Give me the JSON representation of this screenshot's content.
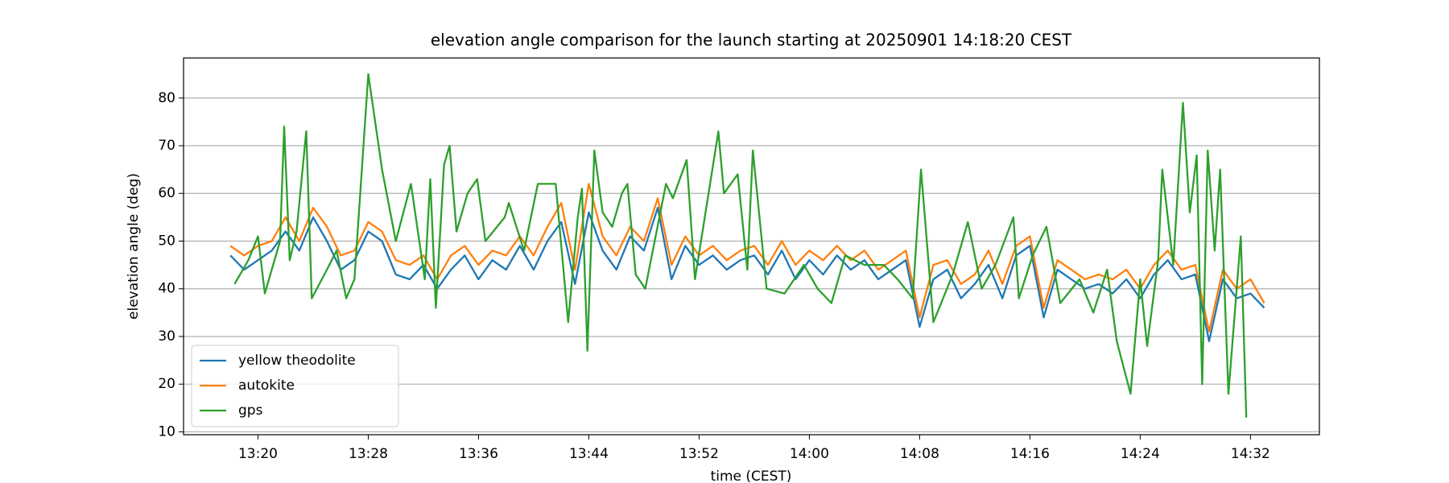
{
  "chart_data": {
    "type": "line",
    "title": "elevation angle comparison for the launch starting at 20250901 14:18:20 CEST",
    "x_label": "time (CEST)",
    "y_label": "elevation angle (deg)",
    "x": [
      798,
      799,
      800,
      801,
      802,
      803,
      804,
      805,
      806,
      807,
      808,
      809,
      810,
      811,
      812,
      813,
      814,
      815,
      816,
      817,
      818,
      819,
      820,
      821,
      822,
      823,
      824,
      825,
      826,
      827,
      828,
      829,
      830,
      831,
      832,
      833,
      834,
      835,
      836,
      837,
      838,
      839,
      840,
      841,
      842,
      843,
      844,
      845,
      846,
      847,
      848,
      849,
      850,
      851,
      852,
      853,
      854,
      855,
      856,
      857,
      858,
      859,
      860,
      861,
      862,
      863,
      864,
      865,
      866,
      867,
      868,
      869,
      870,
      871,
      872,
      873
    ],
    "series": [
      {
        "name": "yellow theodolite",
        "color": "#1f77b4",
        "values": [
          47,
          44,
          46,
          48,
          52,
          48,
          55,
          50,
          44,
          46,
          52,
          50,
          43,
          42,
          45,
          40,
          44,
          47,
          42,
          46,
          44,
          49,
          44,
          50,
          54,
          41,
          56,
          48,
          44,
          51,
          48,
          57,
          42,
          49,
          45,
          47,
          44,
          46,
          47,
          43,
          48,
          42,
          46,
          43,
          47,
          44,
          46,
          42,
          44,
          46,
          32,
          42,
          44,
          38,
          41,
          45,
          38,
          47,
          49,
          34,
          44,
          42,
          40,
          41,
          39,
          42,
          38,
          43,
          46,
          42,
          43,
          29,
          42,
          38,
          39,
          36
        ]
      },
      {
        "name": "autokite",
        "color": "#ff7f0e",
        "values": [
          49,
          47,
          49,
          50,
          55,
          50,
          57,
          53,
          47,
          48,
          54,
          52,
          46,
          45,
          47,
          42,
          47,
          49,
          45,
          48,
          47,
          51,
          47,
          53,
          58,
          44,
          62,
          51,
          47,
          53,
          50,
          59,
          45,
          51,
          47,
          49,
          46,
          48,
          49,
          45,
          50,
          45,
          48,
          46,
          49,
          46,
          48,
          44,
          46,
          48,
          34,
          45,
          46,
          41,
          43,
          48,
          41,
          49,
          51,
          36,
          46,
          44,
          42,
          43,
          42,
          44,
          40,
          45,
          48,
          44,
          45,
          31,
          44,
          40,
          42,
          37
        ]
      },
      {
        "name": "gps",
        "color": "#2ca02c",
        "x": [
          798.3,
          799.3,
          800,
          800.5,
          801.6,
          801.9,
          802.3,
          802.8,
          803.5,
          803.9,
          805,
          805.7,
          806.4,
          807,
          808,
          809,
          810,
          811.1,
          812.1,
          812.5,
          812.9,
          813.5,
          813.9,
          814.4,
          815.2,
          815.9,
          816.5,
          817.9,
          818.2,
          819.3,
          820.3,
          821.6,
          822.5,
          823.2,
          823.5,
          823.9,
          824.4,
          825,
          825.7,
          826.4,
          826.8,
          827.4,
          828.1,
          829.6,
          830.1,
          831.1,
          831.7,
          833.4,
          833.8,
          834.8,
          835.5,
          835.9,
          836.9,
          838.2,
          839.6,
          840.6,
          841.6,
          842.6,
          844,
          845.4,
          846.4,
          847.5,
          848.1,
          849,
          850.4,
          851.5,
          852.5,
          853.5,
          854.8,
          855.2,
          856.2,
          857.2,
          858.2,
          859.6,
          860.6,
          861.6,
          862.3,
          863.3,
          864,
          864.5,
          865.3,
          865.6,
          866.4,
          867.1,
          867.6,
          868.1,
          868.5,
          868.9,
          869.4,
          869.8,
          870.4,
          871.3,
          871.7
        ],
        "values": [
          41,
          46,
          51,
          39,
          50,
          74,
          46,
          52,
          73,
          38,
          44,
          48,
          38,
          42,
          85,
          65,
          50,
          62,
          42,
          63,
          36,
          66,
          70,
          52,
          60,
          63,
          50,
          55,
          58,
          48,
          62,
          62,
          33,
          55,
          61,
          27,
          69,
          56,
          53,
          60,
          62,
          43,
          40,
          62,
          59,
          67,
          42,
          73,
          60,
          64,
          44,
          69,
          40,
          39,
          45,
          40,
          37,
          47,
          45,
          45,
          42,
          38,
          65,
          33,
          43,
          54,
          40,
          45,
          55,
          38,
          47,
          53,
          37,
          42,
          35,
          44,
          29,
          18,
          42,
          28,
          46,
          65,
          45,
          79,
          56,
          68,
          20,
          69,
          48,
          65,
          18,
          51,
          13
        ]
      }
    ],
    "xlim": [
      794.6,
      877
    ],
    "xticks": [
      {
        "value": 800,
        "label": "13:20"
      },
      {
        "value": 808,
        "label": "13:28"
      },
      {
        "value": 816,
        "label": "13:36"
      },
      {
        "value": 824,
        "label": "13:44"
      },
      {
        "value": 832,
        "label": "13:52"
      },
      {
        "value": 840,
        "label": "14:00"
      },
      {
        "value": 848,
        "label": "14:08"
      },
      {
        "value": 856,
        "label": "14:16"
      },
      {
        "value": 864,
        "label": "14:24"
      },
      {
        "value": 872,
        "label": "14:32"
      }
    ],
    "ylim": [
      9.4,
      88.4
    ],
    "yticks": [
      10,
      20,
      30,
      40,
      50,
      60,
      70,
      80
    ],
    "grid": true,
    "legend": "lower left"
  }
}
